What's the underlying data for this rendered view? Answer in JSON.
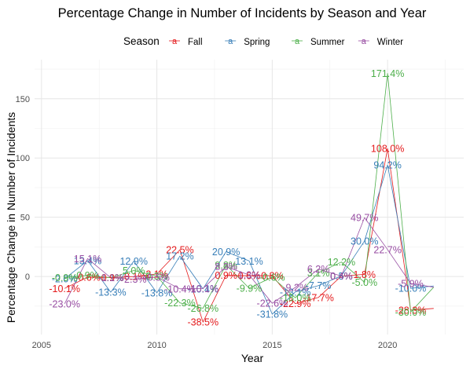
{
  "chart_data": {
    "type": "line",
    "title": "Percentage Change in Number of Incidents by Season and Year",
    "xlabel": "Year",
    "ylabel": "Percentage Change in Number of Incidents",
    "legend": {
      "title": "Season",
      "position": "top"
    },
    "xlim": [
      2004.7,
      2023.3
    ],
    "ylim": [
      -49,
      183
    ],
    "x_ticks": [
      2005,
      2010,
      2015,
      2020
    ],
    "y_ticks": [
      0,
      50,
      100,
      150
    ],
    "grid": true,
    "series": [
      {
        "name": "Fall",
        "color": "#e41a1c",
        "x": [
          2006,
          2007,
          2008,
          2009,
          2010,
          2011,
          2012,
          2013,
          2014,
          2015,
          2016,
          2017,
          2018,
          2019,
          2020,
          2021,
          2022
        ],
        "y": [
          -10.1,
          -0.6,
          -0.9,
          -0.1,
          2.1,
          22.5,
          -38.5,
          0.9,
          0.6,
          0.8,
          -22.9,
          -17.7,
          0.4,
          1.8,
          108.0,
          -28.3,
          -27.0
        ],
        "labels": [
          "-10.1%",
          "-0.6%",
          "-0.9%",
          "-0.1%",
          "2.1%",
          "22.5%",
          "-38.5%",
          "0.9%",
          "0.6%",
          "0.8%",
          "-22.9%",
          "-17.7%",
          "0.4%",
          "1.8%",
          "108.0%",
          "-28.3%",
          ""
        ]
      },
      {
        "name": "Spring",
        "color": "#377eb8",
        "x": [
          2006,
          2007,
          2008,
          2009,
          2010,
          2011,
          2012,
          2013,
          2014,
          2015,
          2016,
          2017,
          2018,
          2019,
          2020,
          2021,
          2022
        ],
        "y": [
          -2.0,
          13.4,
          -13.3,
          12.9,
          -13.8,
          17.2,
          -10.4,
          20.9,
          13.1,
          -31.8,
          -13.1,
          -7.7,
          0.5,
          30.0,
          94.2,
          -10.0,
          -8.0
        ],
        "labels": [
          "-2.0%",
          "13.4%",
          "-13.3%",
          "12.9%",
          "-13.8%",
          "17.2%",
          "-10.4%",
          "20.9%",
          "13.1%",
          "-31.8%",
          "-13.1%",
          "-7.7%",
          "0.5%",
          "30.0%",
          "94.2%",
          "-10.0%",
          ""
        ]
      },
      {
        "name": "Summer",
        "color": "#4daf4a",
        "x": [
          2006,
          2007,
          2008,
          2009,
          2010,
          2011,
          2012,
          2013,
          2014,
          2015,
          2016,
          2017,
          2018,
          2019,
          2020,
          2021,
          2022
        ],
        "y": [
          -0.9,
          0.9,
          -1.1,
          5.0,
          0.3,
          -22.3,
          -26.8,
          9.8,
          -9.9,
          -0.6,
          -18.0,
          3.1,
          12.2,
          -5.0,
          171.4,
          -30.0,
          -9.0
        ],
        "labels": [
          "-0.9%",
          "0.9%",
          "-1.1%",
          "5.0%",
          "0.3%",
          "-22.3%",
          "-26.8%",
          "9.8%",
          "-9.9%",
          "-0.6%",
          "-18.0%",
          "3.1%",
          "12.2%",
          "-5.0%",
          "171.4%",
          "-30.0%",
          ""
        ]
      },
      {
        "name": "Winter",
        "color": "#984ea3",
        "x": [
          2006,
          2007,
          2008,
          2009,
          2010,
          2011,
          2012,
          2013,
          2014,
          2015,
          2016,
          2017,
          2018,
          2019,
          2020,
          2021,
          2022
        ],
        "y": [
          -23.0,
          15.1,
          -1.1,
          -2.3,
          -0.5,
          -10.4,
          -10.1,
          8.3,
          1.3,
          -22.6,
          -9.2,
          6.2,
          0.4,
          49.7,
          22.7,
          -5.9,
          -9.0
        ],
        "labels": [
          "-23.0%",
          "15.1%",
          "-1.1%",
          "-2.3%",
          "-0.5%",
          "-10.4%",
          "-10.1%",
          "8.3%",
          "1.3%",
          "-22.6%",
          "-9.2%",
          "6.2%",
          "0.4%",
          "49.7%",
          "22.7%",
          "-5.9%",
          ""
        ]
      }
    ]
  }
}
